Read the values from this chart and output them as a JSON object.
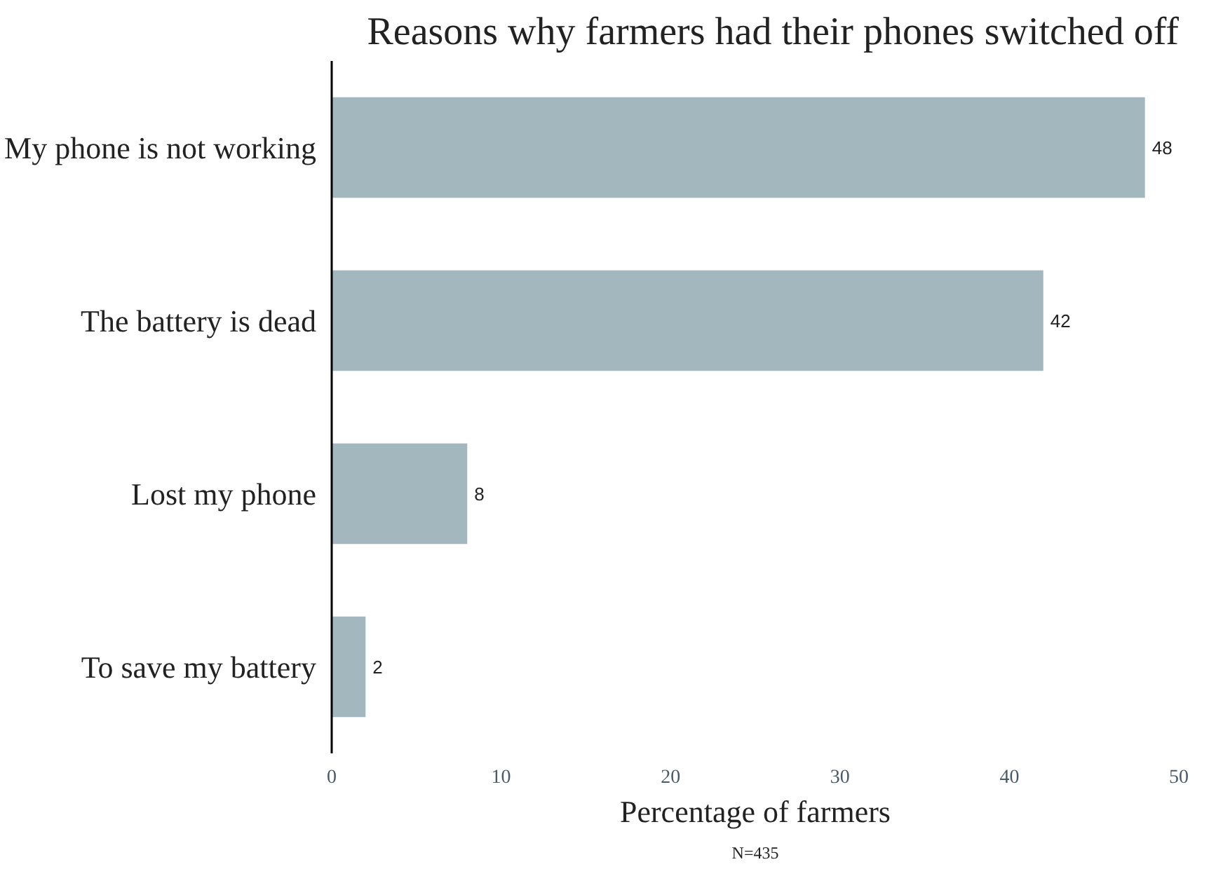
{
  "chart_data": {
    "type": "bar",
    "orientation": "horizontal",
    "title": "Reasons why farmers had their phones switched off",
    "categories": [
      "My phone is not working",
      "The battery is dead",
      "Lost my phone",
      "To save my battery"
    ],
    "values": [
      48,
      42,
      8,
      2
    ],
    "color": "#a3b7bf",
    "data_labels": true,
    "xlim": [
      0,
      50
    ],
    "xticks": [
      0,
      10,
      20,
      30,
      40,
      50
    ],
    "xlabel": "Percentage of farmers",
    "grid": false,
    "annotations": [
      "N=435"
    ]
  }
}
